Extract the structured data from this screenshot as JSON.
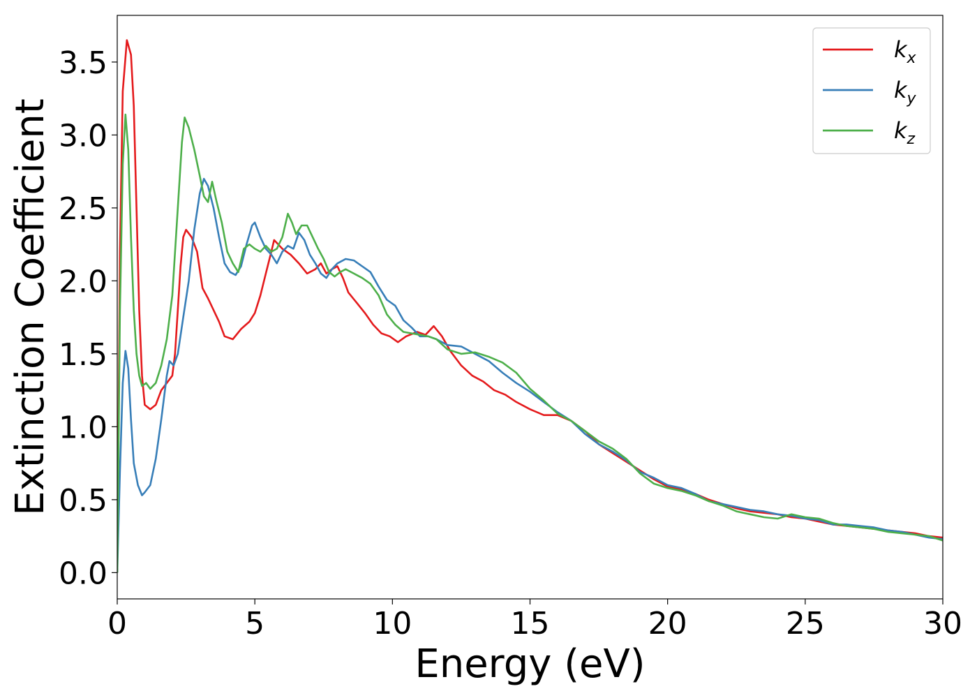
{
  "chart_data": {
    "type": "line",
    "xlabel": "Energy (eV)",
    "ylabel": "Extinction Coefficient",
    "xlim": [
      0,
      30
    ],
    "ylim": [
      -0.18,
      3.82
    ],
    "xticks": [
      0,
      5,
      10,
      15,
      20,
      25,
      30
    ],
    "xtick_labels": [
      "0",
      "5",
      "10",
      "15",
      "20",
      "25",
      "30"
    ],
    "yticks": [
      0.0,
      0.5,
      1.0,
      1.5,
      2.0,
      2.5,
      3.0,
      3.5
    ],
    "ytick_labels": [
      "0.0",
      "0.5",
      "1.0",
      "1.5",
      "2.0",
      "2.5",
      "3.0",
      "3.5"
    ],
    "grid": false,
    "legend_position": "top-right",
    "series": [
      {
        "name": "k",
        "subscript": "x",
        "color": "#e41a1c",
        "points": [
          [
            0,
            0
          ],
          [
            0.1,
            2.2
          ],
          [
            0.2,
            3.3
          ],
          [
            0.35,
            3.65
          ],
          [
            0.5,
            3.55
          ],
          [
            0.6,
            3.2
          ],
          [
            0.7,
            2.5
          ],
          [
            0.8,
            1.8
          ],
          [
            0.9,
            1.35
          ],
          [
            1.0,
            1.15
          ],
          [
            1.2,
            1.12
          ],
          [
            1.4,
            1.15
          ],
          [
            1.6,
            1.25
          ],
          [
            1.8,
            1.3
          ],
          [
            2.0,
            1.35
          ],
          [
            2.1,
            1.5
          ],
          [
            2.2,
            1.8
          ],
          [
            2.3,
            2.1
          ],
          [
            2.4,
            2.3
          ],
          [
            2.5,
            2.35
          ],
          [
            2.7,
            2.3
          ],
          [
            2.9,
            2.2
          ],
          [
            3.1,
            1.95
          ],
          [
            3.3,
            1.88
          ],
          [
            3.5,
            1.8
          ],
          [
            3.7,
            1.72
          ],
          [
            3.9,
            1.62
          ],
          [
            4.2,
            1.6
          ],
          [
            4.5,
            1.67
          ],
          [
            4.8,
            1.72
          ],
          [
            5.0,
            1.78
          ],
          [
            5.2,
            1.9
          ],
          [
            5.4,
            2.05
          ],
          [
            5.6,
            2.2
          ],
          [
            5.7,
            2.28
          ],
          [
            5.85,
            2.25
          ],
          [
            6.0,
            2.22
          ],
          [
            6.3,
            2.18
          ],
          [
            6.6,
            2.12
          ],
          [
            6.9,
            2.05
          ],
          [
            7.2,
            2.08
          ],
          [
            7.4,
            2.12
          ],
          [
            7.6,
            2.05
          ],
          [
            7.8,
            2.08
          ],
          [
            8.0,
            2.1
          ],
          [
            8.2,
            2.02
          ],
          [
            8.4,
            1.92
          ],
          [
            8.7,
            1.85
          ],
          [
            9.0,
            1.78
          ],
          [
            9.3,
            1.7
          ],
          [
            9.6,
            1.64
          ],
          [
            9.9,
            1.62
          ],
          [
            10.2,
            1.58
          ],
          [
            10.5,
            1.62
          ],
          [
            10.9,
            1.65
          ],
          [
            11.2,
            1.63
          ],
          [
            11.5,
            1.69
          ],
          [
            11.8,
            1.62
          ],
          [
            12.1,
            1.52
          ],
          [
            12.5,
            1.42
          ],
          [
            12.9,
            1.35
          ],
          [
            13.3,
            1.31
          ],
          [
            13.7,
            1.25
          ],
          [
            14.1,
            1.22
          ],
          [
            14.5,
            1.17
          ],
          [
            15.0,
            1.12
          ],
          [
            15.5,
            1.08
          ],
          [
            16.0,
            1.08
          ],
          [
            16.5,
            1.04
          ],
          [
            17.0,
            0.97
          ],
          [
            17.5,
            0.88
          ],
          [
            18.0,
            0.82
          ],
          [
            18.5,
            0.76
          ],
          [
            19.0,
            0.7
          ],
          [
            19.5,
            0.64
          ],
          [
            20.0,
            0.59
          ],
          [
            20.5,
            0.57
          ],
          [
            21.0,
            0.54
          ],
          [
            21.5,
            0.5
          ],
          [
            22.0,
            0.47
          ],
          [
            22.5,
            0.44
          ],
          [
            23.0,
            0.42
          ],
          [
            23.5,
            0.41
          ],
          [
            24.0,
            0.4
          ],
          [
            24.5,
            0.38
          ],
          [
            25.0,
            0.37
          ],
          [
            25.5,
            0.35
          ],
          [
            26.0,
            0.33
          ],
          [
            26.5,
            0.32
          ],
          [
            27.0,
            0.31
          ],
          [
            27.5,
            0.3
          ],
          [
            28.0,
            0.29
          ],
          [
            28.5,
            0.28
          ],
          [
            29.0,
            0.27
          ],
          [
            29.5,
            0.25
          ],
          [
            30.0,
            0.24
          ]
        ]
      },
      {
        "name": "k",
        "subscript": "y",
        "color": "#377eb8",
        "points": [
          [
            0,
            0
          ],
          [
            0.1,
            0.7
          ],
          [
            0.2,
            1.3
          ],
          [
            0.3,
            1.52
          ],
          [
            0.4,
            1.4
          ],
          [
            0.5,
            1.05
          ],
          [
            0.6,
            0.75
          ],
          [
            0.75,
            0.6
          ],
          [
            0.9,
            0.53
          ],
          [
            1.0,
            0.55
          ],
          [
            1.2,
            0.6
          ],
          [
            1.4,
            0.78
          ],
          [
            1.6,
            1.05
          ],
          [
            1.8,
            1.35
          ],
          [
            1.9,
            1.45
          ],
          [
            2.05,
            1.42
          ],
          [
            2.2,
            1.5
          ],
          [
            2.4,
            1.75
          ],
          [
            2.6,
            2.0
          ],
          [
            2.8,
            2.35
          ],
          [
            3.0,
            2.6
          ],
          [
            3.15,
            2.7
          ],
          [
            3.3,
            2.65
          ],
          [
            3.5,
            2.5
          ],
          [
            3.7,
            2.3
          ],
          [
            3.9,
            2.12
          ],
          [
            4.1,
            2.06
          ],
          [
            4.3,
            2.04
          ],
          [
            4.5,
            2.1
          ],
          [
            4.7,
            2.25
          ],
          [
            4.9,
            2.38
          ],
          [
            5.0,
            2.4
          ],
          [
            5.2,
            2.3
          ],
          [
            5.4,
            2.22
          ],
          [
            5.6,
            2.18
          ],
          [
            5.8,
            2.12
          ],
          [
            6.0,
            2.2
          ],
          [
            6.2,
            2.24
          ],
          [
            6.4,
            2.22
          ],
          [
            6.6,
            2.33
          ],
          [
            6.8,
            2.28
          ],
          [
            7.0,
            2.18
          ],
          [
            7.2,
            2.12
          ],
          [
            7.4,
            2.05
          ],
          [
            7.6,
            2.02
          ],
          [
            7.8,
            2.08
          ],
          [
            8.0,
            2.12
          ],
          [
            8.3,
            2.15
          ],
          [
            8.6,
            2.14
          ],
          [
            8.9,
            2.1
          ],
          [
            9.2,
            2.06
          ],
          [
            9.5,
            1.96
          ],
          [
            9.8,
            1.87
          ],
          [
            10.1,
            1.83
          ],
          [
            10.4,
            1.73
          ],
          [
            10.7,
            1.68
          ],
          [
            11.0,
            1.62
          ],
          [
            11.3,
            1.62
          ],
          [
            11.6,
            1.6
          ],
          [
            12.0,
            1.56
          ],
          [
            12.5,
            1.55
          ],
          [
            13.0,
            1.5
          ],
          [
            13.5,
            1.45
          ],
          [
            14.0,
            1.37
          ],
          [
            14.5,
            1.3
          ],
          [
            15.0,
            1.24
          ],
          [
            15.5,
            1.17
          ],
          [
            16.0,
            1.1
          ],
          [
            16.5,
            1.04
          ],
          [
            17.0,
            0.95
          ],
          [
            17.5,
            0.88
          ],
          [
            18.0,
            0.83
          ],
          [
            18.5,
            0.77
          ],
          [
            19.0,
            0.69
          ],
          [
            19.5,
            0.65
          ],
          [
            20.0,
            0.6
          ],
          [
            20.5,
            0.58
          ],
          [
            21.0,
            0.54
          ],
          [
            21.5,
            0.49
          ],
          [
            22.0,
            0.47
          ],
          [
            22.5,
            0.45
          ],
          [
            23.0,
            0.43
          ],
          [
            23.5,
            0.42
          ],
          [
            24.0,
            0.4
          ],
          [
            24.5,
            0.39
          ],
          [
            25.0,
            0.37
          ],
          [
            25.5,
            0.36
          ],
          [
            26.0,
            0.33
          ],
          [
            26.5,
            0.33
          ],
          [
            27.0,
            0.32
          ],
          [
            27.5,
            0.31
          ],
          [
            28.0,
            0.29
          ],
          [
            28.5,
            0.28
          ],
          [
            29.0,
            0.26
          ],
          [
            29.5,
            0.24
          ],
          [
            30.0,
            0.23
          ]
        ]
      },
      {
        "name": "k",
        "subscript": "z",
        "color": "#4daf4a",
        "points": [
          [
            0,
            0
          ],
          [
            0.1,
            1.8
          ],
          [
            0.2,
            2.8
          ],
          [
            0.3,
            3.14
          ],
          [
            0.4,
            2.9
          ],
          [
            0.5,
            2.3
          ],
          [
            0.6,
            1.8
          ],
          [
            0.7,
            1.5
          ],
          [
            0.8,
            1.35
          ],
          [
            0.9,
            1.28
          ],
          [
            1.05,
            1.3
          ],
          [
            1.2,
            1.26
          ],
          [
            1.4,
            1.3
          ],
          [
            1.6,
            1.42
          ],
          [
            1.8,
            1.6
          ],
          [
            2.0,
            1.9
          ],
          [
            2.2,
            2.5
          ],
          [
            2.35,
            2.95
          ],
          [
            2.45,
            3.12
          ],
          [
            2.6,
            3.05
          ],
          [
            2.8,
            2.9
          ],
          [
            3.0,
            2.72
          ],
          [
            3.15,
            2.58
          ],
          [
            3.3,
            2.54
          ],
          [
            3.45,
            2.68
          ],
          [
            3.6,
            2.55
          ],
          [
            3.8,
            2.4
          ],
          [
            4.0,
            2.2
          ],
          [
            4.2,
            2.12
          ],
          [
            4.4,
            2.06
          ],
          [
            4.6,
            2.22
          ],
          [
            4.8,
            2.25
          ],
          [
            5.0,
            2.22
          ],
          [
            5.2,
            2.2
          ],
          [
            5.4,
            2.24
          ],
          [
            5.6,
            2.2
          ],
          [
            5.8,
            2.22
          ],
          [
            6.0,
            2.3
          ],
          [
            6.2,
            2.46
          ],
          [
            6.35,
            2.4
          ],
          [
            6.5,
            2.32
          ],
          [
            6.7,
            2.38
          ],
          [
            6.9,
            2.38
          ],
          [
            7.1,
            2.3
          ],
          [
            7.3,
            2.22
          ],
          [
            7.5,
            2.15
          ],
          [
            7.7,
            2.06
          ],
          [
            7.9,
            2.03
          ],
          [
            8.1,
            2.06
          ],
          [
            8.3,
            2.08
          ],
          [
            8.6,
            2.05
          ],
          [
            8.9,
            2.02
          ],
          [
            9.2,
            1.98
          ],
          [
            9.5,
            1.9
          ],
          [
            9.8,
            1.77
          ],
          [
            10.1,
            1.7
          ],
          [
            10.4,
            1.65
          ],
          [
            10.7,
            1.64
          ],
          [
            11.0,
            1.63
          ],
          [
            11.3,
            1.62
          ],
          [
            11.6,
            1.6
          ],
          [
            12.0,
            1.53
          ],
          [
            12.5,
            1.5
          ],
          [
            13.0,
            1.51
          ],
          [
            13.5,
            1.48
          ],
          [
            14.0,
            1.44
          ],
          [
            14.5,
            1.37
          ],
          [
            15.0,
            1.26
          ],
          [
            15.5,
            1.18
          ],
          [
            16.0,
            1.09
          ],
          [
            16.5,
            1.04
          ],
          [
            17.0,
            0.97
          ],
          [
            17.5,
            0.9
          ],
          [
            18.0,
            0.85
          ],
          [
            18.5,
            0.78
          ],
          [
            19.0,
            0.68
          ],
          [
            19.5,
            0.61
          ],
          [
            20.0,
            0.58
          ],
          [
            20.5,
            0.56
          ],
          [
            21.0,
            0.53
          ],
          [
            21.5,
            0.49
          ],
          [
            22.0,
            0.46
          ],
          [
            22.5,
            0.42
          ],
          [
            23.0,
            0.4
          ],
          [
            23.5,
            0.38
          ],
          [
            24.0,
            0.37
          ],
          [
            24.5,
            0.4
          ],
          [
            25.0,
            0.38
          ],
          [
            25.5,
            0.37
          ],
          [
            26.0,
            0.34
          ],
          [
            26.5,
            0.32
          ],
          [
            27.0,
            0.31
          ],
          [
            27.5,
            0.3
          ],
          [
            28.0,
            0.28
          ],
          [
            28.5,
            0.27
          ],
          [
            29.0,
            0.26
          ],
          [
            29.5,
            0.25
          ],
          [
            30.0,
            0.22
          ]
        ]
      }
    ]
  }
}
